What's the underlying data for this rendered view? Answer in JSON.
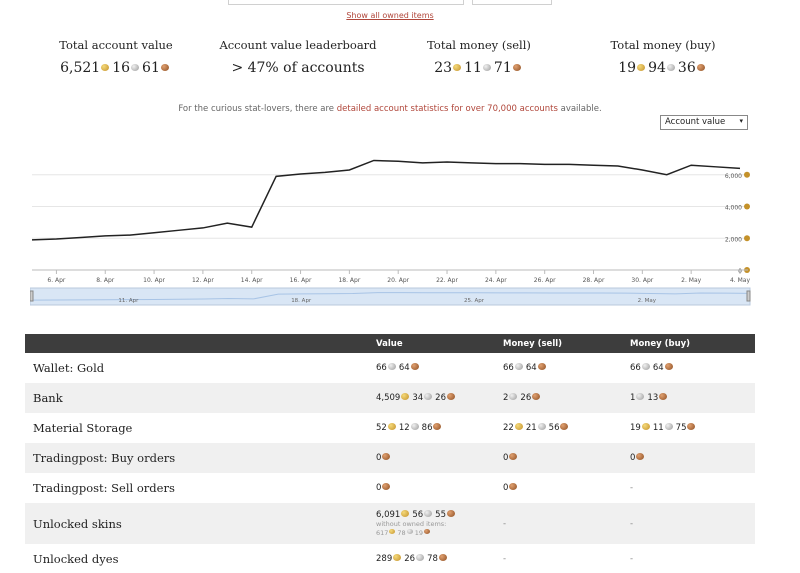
{
  "header": {
    "show_owned_link": "Show all owned items"
  },
  "summary": [
    {
      "label": "Total account value",
      "value_parts": [
        {
          "n": "6,521",
          "c": "gold"
        },
        {
          "n": "16",
          "c": "silver"
        },
        {
          "n": "61",
          "c": "copper"
        }
      ]
    },
    {
      "label": "Account value leaderboard",
      "value_text": "> 47% of accounts"
    },
    {
      "label": "Total money (sell)",
      "value_parts": [
        {
          "n": "23",
          "c": "gold"
        },
        {
          "n": "11",
          "c": "silver"
        },
        {
          "n": "71",
          "c": "copper"
        }
      ]
    },
    {
      "label": "Total money (buy)",
      "value_parts": [
        {
          "n": "19",
          "c": "gold"
        },
        {
          "n": "94",
          "c": "silver"
        },
        {
          "n": "36",
          "c": "copper"
        }
      ]
    }
  ],
  "curious": {
    "prefix": "For the curious stat-lovers, there are ",
    "link": "detailed account statistics for over 70,000 accounts",
    "suffix": " available."
  },
  "select": {
    "value": "Account value",
    "arrow": "▾"
  },
  "chart_data": {
    "type": "line",
    "x": [
      "5. Apr",
      "6. Apr",
      "7. Apr",
      "8. Apr",
      "9. Apr",
      "10. Apr",
      "11. Apr",
      "12. Apr",
      "13. Apr",
      "14. Apr",
      "15. Apr",
      "16. Apr",
      "17. Apr",
      "18. Apr",
      "19. Apr",
      "20. Apr",
      "21. Apr",
      "22. Apr",
      "23. Apr",
      "24. Apr",
      "25. Apr",
      "26. Apr",
      "27. Apr",
      "28. Apr",
      "29. Apr",
      "30. Apr",
      "1. May",
      "2. May",
      "3. May",
      "4. May"
    ],
    "values": [
      1900,
      1950,
      2050,
      2150,
      2200,
      2350,
      2500,
      2650,
      2950,
      2700,
      5900,
      6050,
      6150,
      6300,
      6900,
      6850,
      6750,
      6800,
      6750,
      6700,
      6700,
      6650,
      6650,
      6600,
      6550,
      6300,
      6000,
      6600,
      6500,
      6400
    ],
    "x_ticks": [
      "6. Apr",
      "8. Apr",
      "10. Apr",
      "12. Apr",
      "14. Apr",
      "16. Apr",
      "18. Apr",
      "20. Apr",
      "22. Apr",
      "24. Apr",
      "26. Apr",
      "28. Apr",
      "30. Apr",
      "2. May",
      "4. May"
    ],
    "y_ticks": [
      "0",
      "2,000",
      "4,000",
      "6,000"
    ],
    "ylim": [
      0,
      8000
    ],
    "grid": true,
    "y_axis_side": "right",
    "navigator_ticks": [
      "11. Apr",
      "18. Apr",
      "25. Apr",
      "2. May"
    ],
    "colors": {
      "line": "#222222",
      "grid": "#e6e6e6",
      "navigator_fill": "#d9e6f5",
      "navigator_line": "#a8c4e6"
    }
  },
  "table": {
    "headers": [
      "",
      "Value",
      "Money (sell)",
      "Money (buy)"
    ],
    "rows": [
      {
        "label": "Wallet: Gold",
        "value": [
          {
            "n": "66",
            "c": "silver"
          },
          {
            "n": "64",
            "c": "copper"
          }
        ],
        "sell": [
          {
            "n": "66",
            "c": "silver"
          },
          {
            "n": "64",
            "c": "copper"
          }
        ],
        "buy": [
          {
            "n": "66",
            "c": "silver"
          },
          {
            "n": "64",
            "c": "copper"
          }
        ]
      },
      {
        "label": "Bank",
        "value": [
          {
            "n": "4,509",
            "c": "gold"
          },
          {
            "n": "34",
            "c": "silver"
          },
          {
            "n": "26",
            "c": "copper"
          }
        ],
        "sell": [
          {
            "n": "2",
            "c": "silver"
          },
          {
            "n": "26",
            "c": "copper"
          }
        ],
        "buy": [
          {
            "n": "1",
            "c": "silver"
          },
          {
            "n": "13",
            "c": "copper"
          }
        ]
      },
      {
        "label": "Material Storage",
        "value": [
          {
            "n": "52",
            "c": "gold"
          },
          {
            "n": "12",
            "c": "silver"
          },
          {
            "n": "86",
            "c": "copper"
          }
        ],
        "sell": [
          {
            "n": "22",
            "c": "gold"
          },
          {
            "n": "21",
            "c": "silver"
          },
          {
            "n": "56",
            "c": "copper"
          }
        ],
        "buy": [
          {
            "n": "19",
            "c": "gold"
          },
          {
            "n": "11",
            "c": "silver"
          },
          {
            "n": "75",
            "c": "copper"
          }
        ]
      },
      {
        "label": "Tradingpost: Buy orders",
        "value": [
          {
            "n": "0",
            "c": "copper"
          }
        ],
        "sell": [
          {
            "n": "0",
            "c": "copper"
          }
        ],
        "buy": [
          {
            "n": "0",
            "c": "copper"
          }
        ]
      },
      {
        "label": "Tradingpost: Sell orders",
        "value": [
          {
            "n": "0",
            "c": "copper"
          }
        ],
        "sell": [
          {
            "n": "0",
            "c": "copper"
          }
        ],
        "buy_text": "-"
      },
      {
        "label": "Unlocked skins",
        "value": [
          {
            "n": "6,091",
            "c": "gold"
          },
          {
            "n": "56",
            "c": "silver"
          },
          {
            "n": "55",
            "c": "copper"
          }
        ],
        "value_note": "without owned items:",
        "value_sub": [
          {
            "n": "617",
            "c": "gold"
          },
          {
            "n": "78",
            "c": "silver"
          },
          {
            "n": "19",
            "c": "copper"
          }
        ],
        "sell_text": "-",
        "buy_text": "-"
      },
      {
        "label": "Unlocked dyes",
        "value": [
          {
            "n": "289",
            "c": "gold"
          },
          {
            "n": "26",
            "c": "silver"
          },
          {
            "n": "78",
            "c": "copper"
          }
        ],
        "sell_text": "-",
        "buy_text": "-"
      }
    ]
  }
}
